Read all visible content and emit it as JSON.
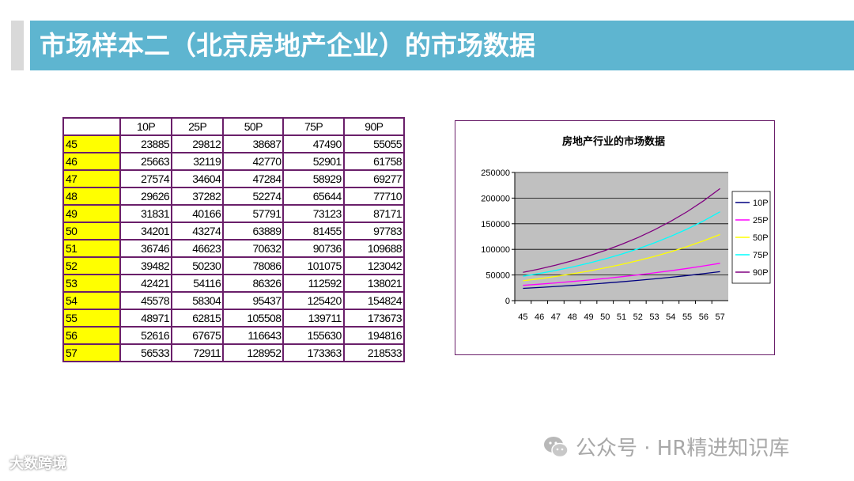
{
  "slide": {
    "title": "市场样本二（北京房地产企业）的市场数据"
  },
  "table": {
    "corner": "",
    "headers": [
      "10P",
      "25P",
      "50P",
      "75P",
      "90P"
    ],
    "rows": [
      {
        "age": "45",
        "values": [
          "23885",
          "29812",
          "38687",
          "47490",
          "55055"
        ]
      },
      {
        "age": "46",
        "values": [
          "25663",
          "32119",
          "42770",
          "52901",
          "61758"
        ]
      },
      {
        "age": "47",
        "values": [
          "27574",
          "34604",
          "47284",
          "58929",
          "69277"
        ]
      },
      {
        "age": "48",
        "values": [
          "29626",
          "37282",
          "52274",
          "65644",
          "77710"
        ]
      },
      {
        "age": "49",
        "values": [
          "31831",
          "40166",
          "57791",
          "73123",
          "87171"
        ]
      },
      {
        "age": "50",
        "values": [
          "34201",
          "43274",
          "63889",
          "81455",
          "97783"
        ]
      },
      {
        "age": "51",
        "values": [
          "36746",
          "46623",
          "70632",
          "90736",
          "109688"
        ]
      },
      {
        "age": "52",
        "values": [
          "39482",
          "50230",
          "78086",
          "101075",
          "123042"
        ]
      },
      {
        "age": "53",
        "values": [
          "42421",
          "54116",
          "86326",
          "112592",
          "138021"
        ]
      },
      {
        "age": "54",
        "values": [
          "45578",
          "58304",
          "95437",
          "125420",
          "154824"
        ]
      },
      {
        "age": "55",
        "values": [
          "48971",
          "62815",
          "105508",
          "139711",
          "173673"
        ]
      },
      {
        "age": "56",
        "values": [
          "52616",
          "67675",
          "116643",
          "155630",
          "194816"
        ]
      },
      {
        "age": "57",
        "values": [
          "56533",
          "72911",
          "128952",
          "173363",
          "218533"
        ]
      }
    ]
  },
  "chart_data": {
    "type": "line",
    "title": "房地产行业的市场数据",
    "xlabel": "",
    "ylabel": "",
    "categories": [
      "45",
      "46",
      "47",
      "48",
      "49",
      "50",
      "51",
      "52",
      "53",
      "54",
      "55",
      "56",
      "57"
    ],
    "ylim": [
      0,
      250000
    ],
    "yticks": [
      "0",
      "50000",
      "100000",
      "150000",
      "200000",
      "250000"
    ],
    "grid": true,
    "legend_position": "right",
    "plot_background": "#c0c0c0",
    "series": [
      {
        "name": "10P",
        "color": "#000080",
        "values": [
          23885,
          25663,
          27574,
          29626,
          31831,
          34201,
          36746,
          39482,
          42421,
          45578,
          48971,
          52616,
          56533
        ]
      },
      {
        "name": "25P",
        "color": "#ff00ff",
        "values": [
          29812,
          32119,
          34604,
          37282,
          40166,
          43274,
          46623,
          50230,
          54116,
          58304,
          62815,
          67675,
          72911
        ]
      },
      {
        "name": "50P",
        "color": "#ffff00",
        "values": [
          38687,
          42770,
          47284,
          52274,
          57791,
          63889,
          70632,
          78086,
          86326,
          95437,
          105508,
          116643,
          128952
        ]
      },
      {
        "name": "75P",
        "color": "#00ffff",
        "values": [
          47490,
          52901,
          58929,
          65644,
          73123,
          81455,
          90736,
          101075,
          112592,
          125420,
          139711,
          155630,
          173363
        ]
      },
      {
        "name": "90P",
        "color": "#800080",
        "values": [
          55055,
          61758,
          69277,
          77710,
          87171,
          97783,
          109688,
          123042,
          138021,
          154824,
          173673,
          194816,
          218533
        ]
      }
    ]
  },
  "watermarks": {
    "left": "大数跨境",
    "right": "公众号 · HR精进知识库"
  }
}
